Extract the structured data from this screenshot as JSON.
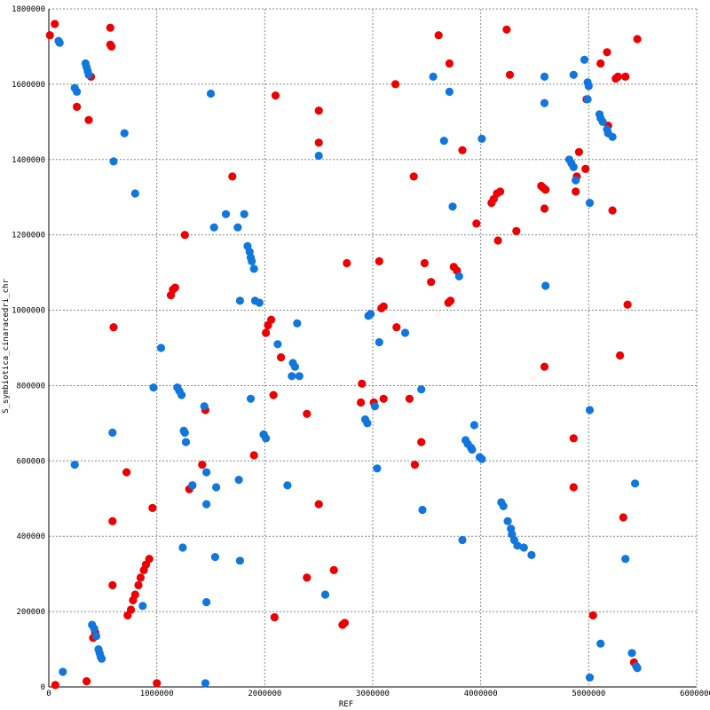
{
  "chart_data": {
    "type": "scatter",
    "xlabel": "REF",
    "ylabel": "S_symbiotica_cinaracedri_chr",
    "xlim": [
      0,
      6000000
    ],
    "ylim": [
      0,
      1800000
    ],
    "x_ticks": [
      0,
      1000000,
      2000000,
      3000000,
      4000000,
      5000000,
      6000000
    ],
    "y_ticks": [
      0,
      200000,
      400000,
      600000,
      800000,
      1000000,
      1200000,
      1400000,
      1600000,
      1800000
    ],
    "x_tick_labels": [
      "0",
      "1000000",
      "2000000",
      "3000000",
      "4000000",
      "5000000",
      "6000000"
    ],
    "y_tick_labels": [
      "0",
      "200000",
      "400000",
      "600000",
      "800000",
      "1000000",
      "1200000",
      "1400000",
      "1600000",
      "1800000"
    ],
    "grid": true,
    "series": [
      {
        "color": "#ee0000",
        "points": [
          [
            10000,
            1730000
          ],
          [
            55000,
            1760000
          ],
          [
            570000,
            1750000
          ],
          [
            570000,
            1705000
          ],
          [
            580000,
            1700000
          ],
          [
            390000,
            1620000
          ],
          [
            260000,
            1540000
          ],
          [
            370000,
            1505000
          ],
          [
            60000,
            5000
          ],
          [
            350000,
            15000
          ],
          [
            410000,
            130000
          ],
          [
            430000,
            145000
          ],
          [
            590000,
            270000
          ],
          [
            590000,
            440000
          ],
          [
            600000,
            955000
          ],
          [
            720000,
            570000
          ],
          [
            730000,
            190000
          ],
          [
            760000,
            205000
          ],
          [
            780000,
            230000
          ],
          [
            800000,
            245000
          ],
          [
            830000,
            270000
          ],
          [
            850000,
            290000
          ],
          [
            880000,
            310000
          ],
          [
            900000,
            325000
          ],
          [
            930000,
            340000
          ],
          [
            960000,
            475000
          ],
          [
            1000000,
            10000
          ],
          [
            1130000,
            1040000
          ],
          [
            1150000,
            1055000
          ],
          [
            1170000,
            1060000
          ],
          [
            1260000,
            1200000
          ],
          [
            1300000,
            525000
          ],
          [
            1330000,
            535000
          ],
          [
            1420000,
            590000
          ],
          [
            1450000,
            735000
          ],
          [
            1700000,
            1355000
          ],
          [
            1900000,
            615000
          ],
          [
            1990000,
            670000
          ],
          [
            2010000,
            940000
          ],
          [
            2030000,
            960000
          ],
          [
            2060000,
            975000
          ],
          [
            2100000,
            1570000
          ],
          [
            2080000,
            775000
          ],
          [
            2090000,
            185000
          ],
          [
            2150000,
            875000
          ],
          [
            2390000,
            290000
          ],
          [
            2390000,
            725000
          ],
          [
            2500000,
            1530000
          ],
          [
            2500000,
            1445000
          ],
          [
            2500000,
            485000
          ],
          [
            2640000,
            310000
          ],
          [
            2720000,
            165000
          ],
          [
            2740000,
            170000
          ],
          [
            2760000,
            1125000
          ],
          [
            2890000,
            755000
          ],
          [
            2900000,
            805000
          ],
          [
            3010000,
            755000
          ],
          [
            3060000,
            1130000
          ],
          [
            3080000,
            1005000
          ],
          [
            3100000,
            1010000
          ],
          [
            3100000,
            765000
          ],
          [
            3210000,
            1600000
          ],
          [
            3220000,
            955000
          ],
          [
            3340000,
            765000
          ],
          [
            3380000,
            1355000
          ],
          [
            3390000,
            590000
          ],
          [
            3450000,
            650000
          ],
          [
            3480000,
            1125000
          ],
          [
            3540000,
            1075000
          ],
          [
            3610000,
            1730000
          ],
          [
            3700000,
            1020000
          ],
          [
            3710000,
            1655000
          ],
          [
            3720000,
            1025000
          ],
          [
            3750000,
            1115000
          ],
          [
            3780000,
            1105000
          ],
          [
            3830000,
            1425000
          ],
          [
            3960000,
            1230000
          ],
          [
            4100000,
            1285000
          ],
          [
            4120000,
            1295000
          ],
          [
            4150000,
            1310000
          ],
          [
            4180000,
            1315000
          ],
          [
            4160000,
            1185000
          ],
          [
            4240000,
            1745000
          ],
          [
            4270000,
            1625000
          ],
          [
            4330000,
            1210000
          ],
          [
            4560000,
            1330000
          ],
          [
            4580000,
            1325000
          ],
          [
            4600000,
            1320000
          ],
          [
            4590000,
            1270000
          ],
          [
            4590000,
            850000
          ],
          [
            4880000,
            1315000
          ],
          [
            4890000,
            1355000
          ],
          [
            4910000,
            1420000
          ],
          [
            4970000,
            1375000
          ],
          [
            4980000,
            1560000
          ],
          [
            4860000,
            660000
          ],
          [
            4860000,
            530000
          ],
          [
            5110000,
            1655000
          ],
          [
            5040000,
            190000
          ],
          [
            5170000,
            1685000
          ],
          [
            5180000,
            1490000
          ],
          [
            5220000,
            1265000
          ],
          [
            5250000,
            1615000
          ],
          [
            5270000,
            1620000
          ],
          [
            5290000,
            880000
          ],
          [
            5320000,
            450000
          ],
          [
            5340000,
            1620000
          ],
          [
            5360000,
            1015000
          ],
          [
            5420000,
            65000
          ],
          [
            5450000,
            1720000
          ]
        ]
      },
      {
        "color": "#1177dd",
        "points": [
          [
            90000,
            1715000
          ],
          [
            100000,
            1710000
          ],
          [
            130000,
            40000
          ],
          [
            240000,
            590000
          ],
          [
            240000,
            1590000
          ],
          [
            260000,
            1580000
          ],
          [
            340000,
            1655000
          ],
          [
            350000,
            1645000
          ],
          [
            360000,
            1635000
          ],
          [
            370000,
            1625000
          ],
          [
            400000,
            165000
          ],
          [
            420000,
            155000
          ],
          [
            440000,
            135000
          ],
          [
            460000,
            100000
          ],
          [
            470000,
            90000
          ],
          [
            480000,
            80000
          ],
          [
            490000,
            75000
          ],
          [
            590000,
            675000
          ],
          [
            600000,
            1395000
          ],
          [
            700000,
            1470000
          ],
          [
            800000,
            1310000
          ],
          [
            870000,
            215000
          ],
          [
            970000,
            795000
          ],
          [
            1040000,
            900000
          ],
          [
            1190000,
            795000
          ],
          [
            1210000,
            785000
          ],
          [
            1230000,
            775000
          ],
          [
            1240000,
            370000
          ],
          [
            1250000,
            680000
          ],
          [
            1260000,
            675000
          ],
          [
            1270000,
            650000
          ],
          [
            1330000,
            535000
          ],
          [
            1440000,
            745000
          ],
          [
            1460000,
            570000
          ],
          [
            1460000,
            485000
          ],
          [
            1460000,
            225000
          ],
          [
            1450000,
            10000
          ],
          [
            1500000,
            1575000
          ],
          [
            1530000,
            1220000
          ],
          [
            1550000,
            530000
          ],
          [
            1540000,
            345000
          ],
          [
            1640000,
            1255000
          ],
          [
            1750000,
            1220000
          ],
          [
            1760000,
            550000
          ],
          [
            1770000,
            1025000
          ],
          [
            1770000,
            335000
          ],
          [
            1810000,
            1255000
          ],
          [
            1840000,
            1170000
          ],
          [
            1860000,
            1155000
          ],
          [
            1870000,
            1140000
          ],
          [
            1880000,
            1130000
          ],
          [
            1900000,
            1110000
          ],
          [
            1870000,
            765000
          ],
          [
            1910000,
            1025000
          ],
          [
            1950000,
            1020000
          ],
          [
            1990000,
            670000
          ],
          [
            2010000,
            660000
          ],
          [
            2120000,
            910000
          ],
          [
            2210000,
            535000
          ],
          [
            2260000,
            860000
          ],
          [
            2280000,
            850000
          ],
          [
            2300000,
            965000
          ],
          [
            2320000,
            825000
          ],
          [
            2250000,
            825000
          ],
          [
            2500000,
            1410000
          ],
          [
            2560000,
            245000
          ],
          [
            2930000,
            710000
          ],
          [
            2950000,
            700000
          ],
          [
            2960000,
            985000
          ],
          [
            2980000,
            990000
          ],
          [
            3020000,
            745000
          ],
          [
            3040000,
            580000
          ],
          [
            3060000,
            915000
          ],
          [
            3300000,
            940000
          ],
          [
            3450000,
            790000
          ],
          [
            3460000,
            470000
          ],
          [
            3560000,
            1620000
          ],
          [
            3660000,
            1450000
          ],
          [
            3710000,
            1580000
          ],
          [
            3740000,
            1275000
          ],
          [
            3800000,
            1090000
          ],
          [
            3830000,
            390000
          ],
          [
            3860000,
            655000
          ],
          [
            3880000,
            645000
          ],
          [
            3910000,
            635000
          ],
          [
            3920000,
            630000
          ],
          [
            3940000,
            695000
          ],
          [
            3990000,
            610000
          ],
          [
            4010000,
            605000
          ],
          [
            4010000,
            1455000
          ],
          [
            4190000,
            490000
          ],
          [
            4210000,
            480000
          ],
          [
            4250000,
            440000
          ],
          [
            4280000,
            420000
          ],
          [
            4290000,
            405000
          ],
          [
            4310000,
            390000
          ],
          [
            4340000,
            375000
          ],
          [
            4400000,
            370000
          ],
          [
            4470000,
            350000
          ],
          [
            4590000,
            1620000
          ],
          [
            4590000,
            1550000
          ],
          [
            4600000,
            1065000
          ],
          [
            4820000,
            1400000
          ],
          [
            4840000,
            1390000
          ],
          [
            4860000,
            1380000
          ],
          [
            4860000,
            1625000
          ],
          [
            4880000,
            1345000
          ],
          [
            4960000,
            1665000
          ],
          [
            4990000,
            1605000
          ],
          [
            5000000,
            1595000
          ],
          [
            4990000,
            1560000
          ],
          [
            5010000,
            1285000
          ],
          [
            5010000,
            735000
          ],
          [
            5010000,
            25000
          ],
          [
            5100000,
            1520000
          ],
          [
            5110000,
            1510000
          ],
          [
            5130000,
            1500000
          ],
          [
            5170000,
            1480000
          ],
          [
            5180000,
            1470000
          ],
          [
            5220000,
            1460000
          ],
          [
            5110000,
            115000
          ],
          [
            5340000,
            340000
          ],
          [
            5400000,
            90000
          ],
          [
            5430000,
            540000
          ],
          [
            5440000,
            55000
          ],
          [
            5450000,
            50000
          ]
        ]
      }
    ]
  }
}
